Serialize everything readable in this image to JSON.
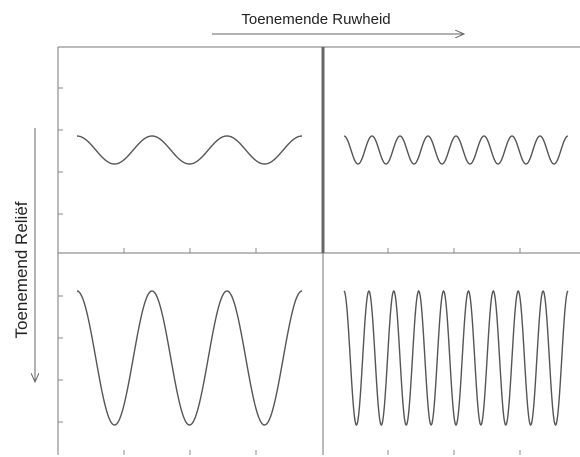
{
  "figure": {
    "top_label": "Toenemende Ruwheid",
    "left_label": "Toenemend Reliëf"
  },
  "panels": [
    {
      "name": "panel-low-relief-low-roughness",
      "cycles": 3,
      "amplitude_level": "low"
    },
    {
      "name": "panel-low-relief-high-roughness",
      "cycles": 8,
      "amplitude_level": "low"
    },
    {
      "name": "panel-high-relief-low-roughness",
      "cycles": 3,
      "amplitude_level": "high"
    },
    {
      "name": "panel-high-relief-high-roughness",
      "cycles": 9,
      "amplitude_level": "high"
    }
  ],
  "colors": {
    "line": "#555555",
    "frame": "#777777",
    "divider": "#666666",
    "text": "#222222"
  }
}
